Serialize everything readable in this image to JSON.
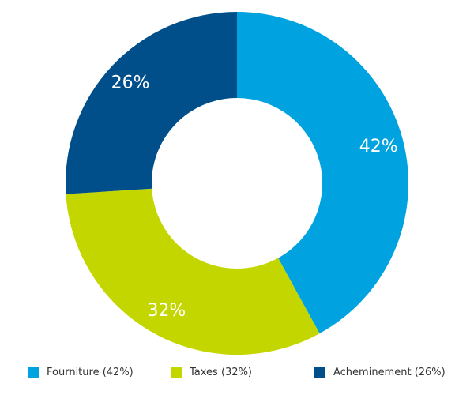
{
  "chart_data": {
    "type": "pie",
    "title": "",
    "donut": true,
    "categories": [
      "Fourniture",
      "Taxes",
      "Acheminement"
    ],
    "values": [
      42,
      32,
      26
    ],
    "slice_labels": [
      "42%",
      "32%",
      "26%"
    ],
    "colors": [
      "#00a3e0",
      "#c4d600",
      "#004f8b"
    ],
    "legend": {
      "position": "bottom",
      "entries": [
        "Fourniture (42%)",
        "Taxes (32%)",
        "Acheminement (26%)"
      ]
    }
  }
}
